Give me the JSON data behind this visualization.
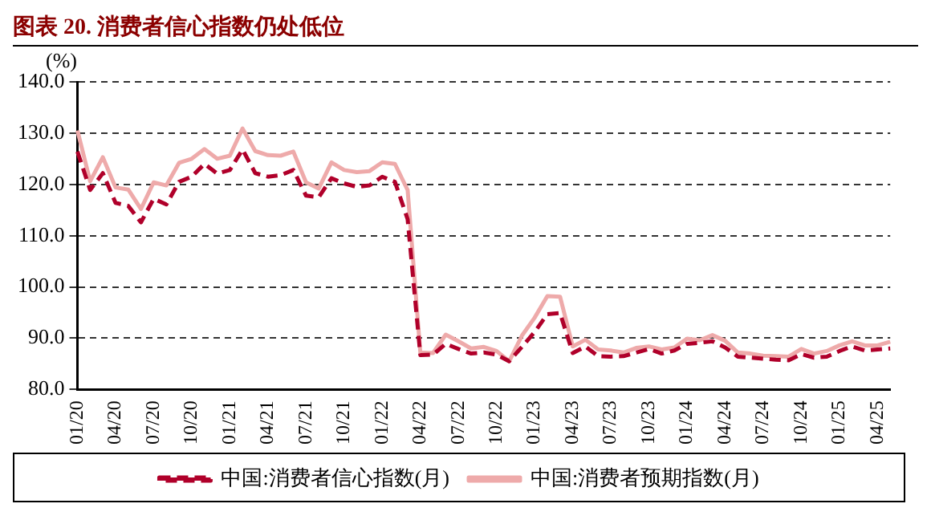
{
  "chart_data": {
    "type": "line",
    "title": "图表 20. 消费者信心指数仍处低位",
    "ylabel": "(%)",
    "categories": [
      "01/20",
      null,
      null,
      "04/20",
      null,
      null,
      "07/20",
      null,
      null,
      "10/20",
      null,
      null,
      "01/21",
      null,
      null,
      "04/21",
      null,
      null,
      "07/21",
      null,
      null,
      "10/21",
      null,
      null,
      "01/22",
      null,
      null,
      "04/22",
      null,
      null,
      "07/22",
      null,
      null,
      "10/22",
      null,
      null,
      "01/23",
      null,
      null,
      "04/23",
      null,
      null,
      "07/23",
      null,
      null,
      "10/23",
      null,
      null,
      "01/24",
      null,
      null,
      "04/24",
      null,
      null,
      "07/24",
      null,
      null,
      "10/24",
      null,
      null,
      "01/25",
      null,
      null,
      "04/25",
      null
    ],
    "series": [
      {
        "name": "中国:消费者信心指数(月)",
        "color": "#b0002a",
        "line_style": "dashed",
        "values": [
          126.4,
          118.9,
          122.2,
          116.4,
          115.8,
          112.6,
          117.2,
          116.1,
          120.5,
          121.5,
          124.0,
          122.1,
          122.8,
          126.8,
          122.2,
          121.5,
          121.8,
          122.8,
          117.8,
          117.5,
          121.2,
          120.2,
          119.5,
          119.8,
          121.5,
          120.5,
          113.2,
          86.7,
          86.8,
          88.9,
          87.9,
          87.0,
          87.2,
          86.8,
          85.5,
          88.3,
          91.2,
          94.7,
          94.9,
          87.1,
          88.4,
          86.5,
          86.4,
          86.5,
          87.2,
          87.9,
          87.0,
          87.6,
          88.9,
          89.1,
          89.4,
          88.2,
          86.4,
          86.2,
          86.0,
          85.8,
          85.7,
          86.9,
          86.2,
          86.4,
          87.5,
          88.4,
          87.6,
          87.8,
          88.0
        ]
      },
      {
        "name": "中国:消费者预期指数(月)",
        "color": "#eeaaaa",
        "line_style": "solid",
        "values": [
          130.5,
          120.6,
          125.3,
          119.4,
          119.0,
          115.2,
          120.4,
          119.8,
          124.2,
          125.0,
          126.9,
          125.0,
          125.6,
          130.9,
          126.5,
          125.7,
          125.6,
          126.4,
          120.4,
          119.2,
          124.3,
          122.8,
          122.4,
          122.6,
          124.3,
          124.0,
          118.9,
          87.2,
          87.1,
          90.7,
          89.4,
          88.0,
          88.3,
          87.5,
          85.5,
          90.5,
          94.0,
          98.2,
          98.1,
          88.4,
          89.7,
          87.8,
          87.6,
          87.2,
          88.1,
          88.4,
          87.8,
          88.2,
          89.9,
          89.6,
          90.6,
          89.5,
          87.2,
          87.0,
          86.6,
          86.5,
          86.4,
          87.9,
          87.0,
          87.5,
          88.6,
          89.4,
          88.6,
          88.6,
          89.3
        ]
      }
    ],
    "ylim": [
      80,
      140
    ],
    "yticks": [
      {
        "value": 80,
        "label": "80.0"
      },
      {
        "value": 90,
        "label": "90.0"
      },
      {
        "value": 100,
        "label": "100.0"
      },
      {
        "value": 110,
        "label": "110.0"
      },
      {
        "value": 120,
        "label": "120.0"
      },
      {
        "value": 130,
        "label": "130.0"
      },
      {
        "value": 140,
        "label": "140.0"
      }
    ],
    "grid": "y",
    "legend": "bottom",
    "marker": "none"
  }
}
